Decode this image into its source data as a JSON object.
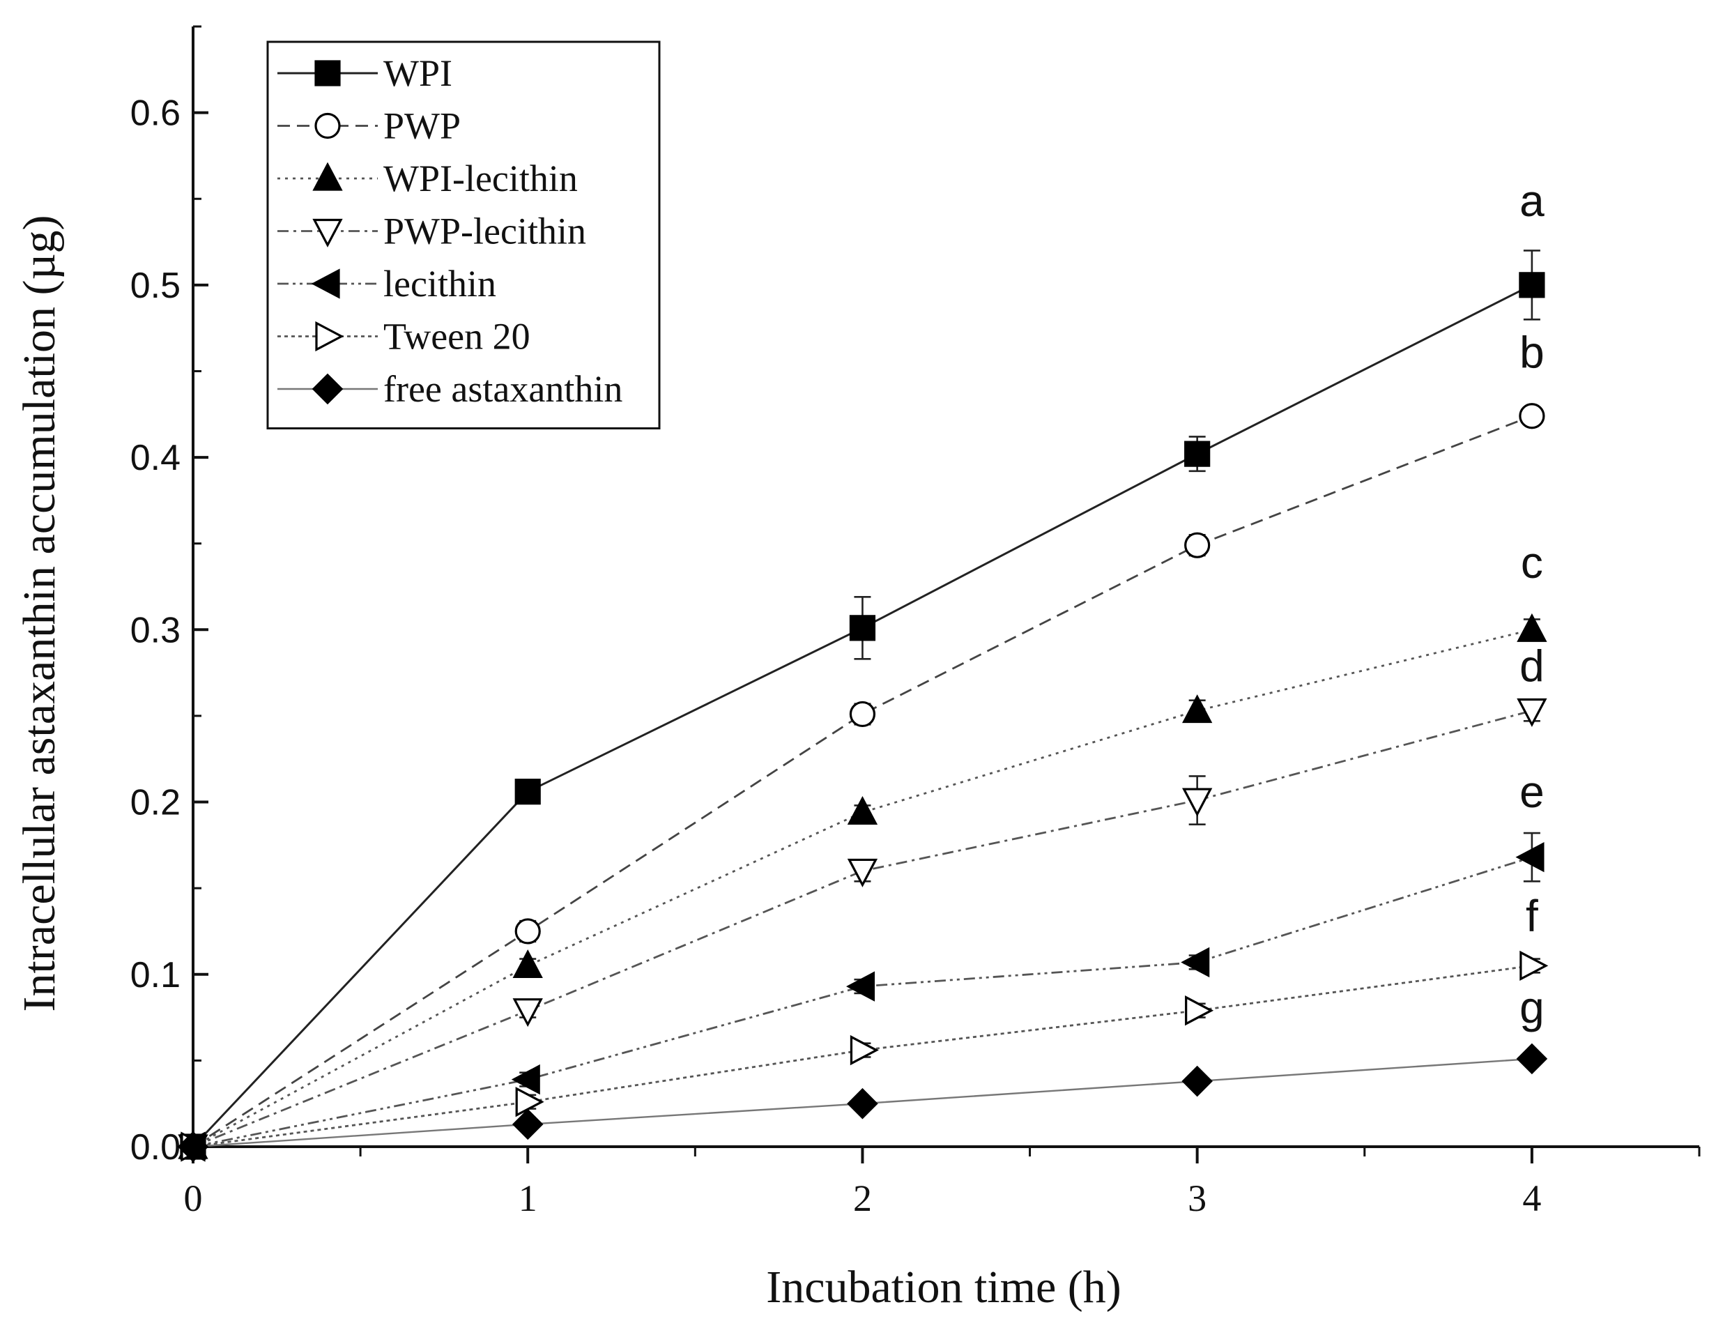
{
  "chart_data": {
    "type": "line",
    "title": "",
    "xlabel": "Incubation time (h)",
    "ylabel": "Intracellular astaxanthin accumulation (µg)",
    "xlim": [
      0,
      4.5
    ],
    "ylim": [
      0,
      0.65
    ],
    "x_ticks": [
      0,
      1,
      2,
      3,
      4
    ],
    "x_tick_labels": [
      "0",
      "1",
      "2",
      "3",
      "4"
    ],
    "x_minor_ticks": [
      0.5,
      1.5,
      2.5,
      3.5,
      4.5
    ],
    "y_ticks": [
      0,
      0.1,
      0.2,
      0.3,
      0.4,
      0.5,
      0.6
    ],
    "y_tick_labels": [
      "0.0",
      "0.1",
      "0.2",
      "0.3",
      "0.4",
      "0.5",
      "0.6"
    ],
    "y_minor_ticks": [
      0.05,
      0.15,
      0.25,
      0.35,
      0.45,
      0.55,
      0.65
    ],
    "grid": false,
    "legend_position": "top-left",
    "x": [
      0,
      1,
      2,
      3,
      4
    ],
    "series": [
      {
        "name": "WPI",
        "marker": "square-filled",
        "line": "solid",
        "color": "#222222",
        "values": [
          0,
          0.206,
          0.301,
          0.402,
          0.5
        ],
        "errors": [
          0,
          0.004,
          0.018,
          0.01,
          0.02
        ]
      },
      {
        "name": "PWP",
        "marker": "circle-open",
        "line": "dashed",
        "color": "#444444",
        "values": [
          0,
          0.125,
          0.251,
          0.349,
          0.424
        ],
        "errors": [
          0,
          0.006,
          0.006,
          0.006,
          0.004
        ]
      },
      {
        "name": "WPI-lecithin",
        "marker": "triangle-up-filled",
        "line": "dotted",
        "color": "#555555",
        "values": [
          0,
          0.105,
          0.194,
          0.253,
          0.3
        ],
        "errors": [
          0,
          0.004,
          0.004,
          0.006,
          0.006
        ]
      },
      {
        "name": "PWP-lecithin",
        "marker": "triangle-down-open",
        "line": "dashdot",
        "color": "#555555",
        "values": [
          0,
          0.079,
          0.16,
          0.201,
          0.253
        ],
        "errors": [
          0,
          0.004,
          0.006,
          0.014,
          0.006
        ]
      },
      {
        "name": "lecithin",
        "marker": "triangle-left-filled",
        "line": "dashdotdot",
        "color": "#555555",
        "values": [
          0,
          0.039,
          0.093,
          0.107,
          0.168
        ],
        "errors": [
          0,
          0.004,
          0.004,
          0.004,
          0.014
        ]
      },
      {
        "name": "Tween 20",
        "marker": "triangle-right-open",
        "line": "shortdot",
        "color": "#555555",
        "values": [
          0,
          0.026,
          0.056,
          0.079,
          0.105
        ],
        "errors": [
          0,
          0.004,
          0.004,
          0.004,
          0.004
        ]
      },
      {
        "name": "free astaxanthin",
        "marker": "diamond-filled",
        "line": "solid-light",
        "color": "#777777",
        "values": [
          0,
          0.013,
          0.025,
          0.038,
          0.051
        ],
        "errors": [
          0,
          0.002,
          0.002,
          0.002,
          0.002
        ]
      }
    ],
    "annotations": [
      {
        "text": "a",
        "x": 4,
        "y": 0.54
      },
      {
        "text": "b",
        "x": 4,
        "y": 0.452
      },
      {
        "text": "c",
        "x": 4,
        "y": 0.33
      },
      {
        "text": "d",
        "x": 4,
        "y": 0.27
      },
      {
        "text": "e",
        "x": 4,
        "y": 0.197
      },
      {
        "text": "f",
        "x": 4,
        "y": 0.125
      },
      {
        "text": "g",
        "x": 4,
        "y": 0.072
      }
    ]
  }
}
